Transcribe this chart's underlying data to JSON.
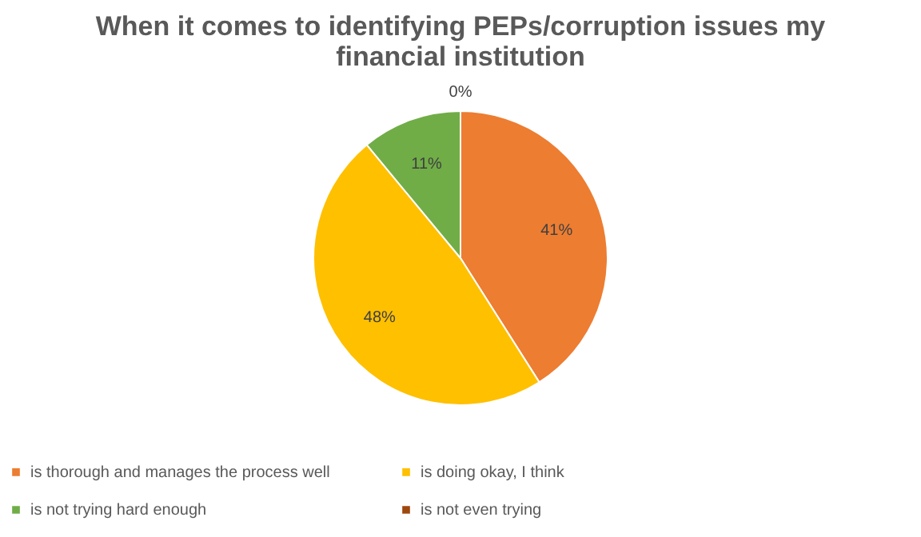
{
  "chart_data": {
    "type": "pie",
    "title": "When it comes to identifying PEPs/corruption issues my financial institution",
    "categories": [
      "is thorough and manages the process well",
      "is doing okay, I think",
      "is not trying hard enough",
      "is not even trying"
    ],
    "values": [
      41,
      48,
      11,
      0
    ],
    "colors": [
      "#ed7d31",
      "#ffc000",
      "#70ad47",
      "#9e480e"
    ],
    "value_labels": [
      "41%",
      "48%",
      "11%",
      "0%"
    ],
    "legend": "bottom"
  }
}
